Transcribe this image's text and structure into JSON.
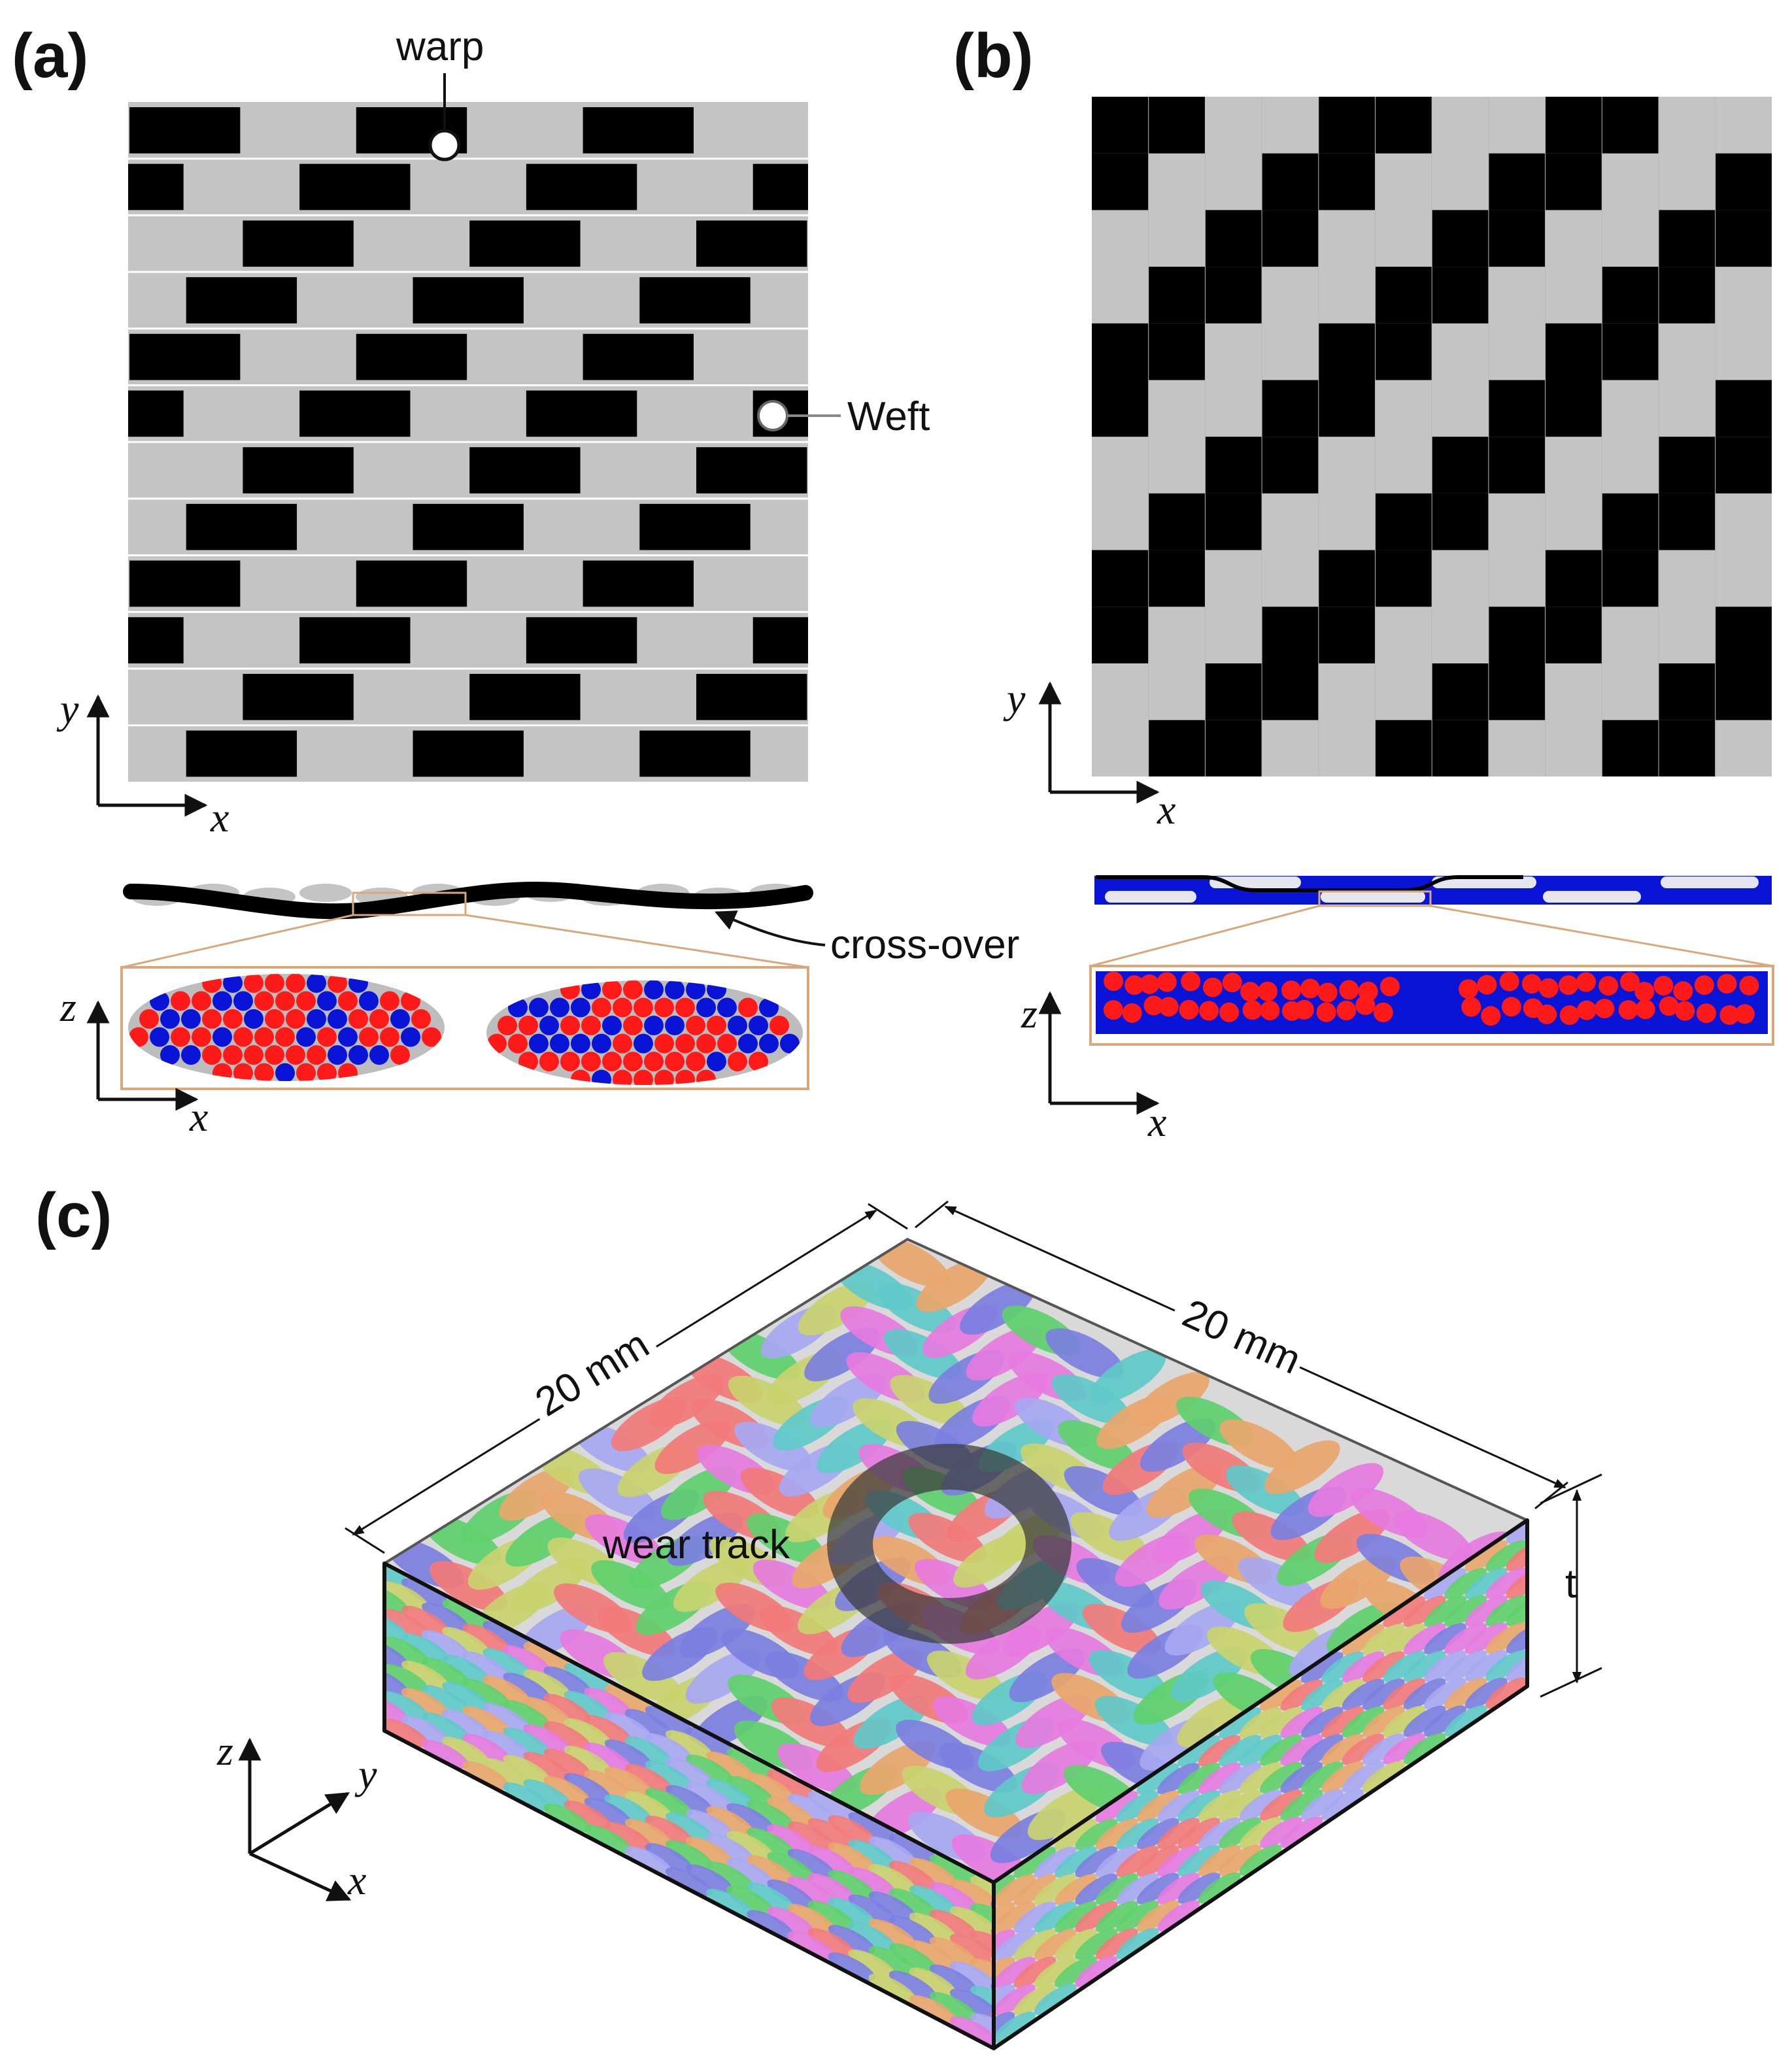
{
  "panels": {
    "a": {
      "label": "(a)",
      "annotations": {
        "warp": "warp",
        "weft": "Weft",
        "crossover": "cross-over"
      },
      "top_axes": {
        "x": "x",
        "y": "y"
      },
      "bottom_axes": {
        "x": "x",
        "z": "z"
      }
    },
    "b": {
      "label": "(b)",
      "top_axes": {
        "x": "x",
        "y": "y"
      },
      "bottom_axes": {
        "x": "x",
        "z": "z"
      }
    },
    "c": {
      "label": "(c)",
      "dimension_left": "20 mm",
      "dimension_right": "20 mm",
      "thickness": "t",
      "wear_track": "wear track",
      "axes": {
        "x": "x",
        "y": "y",
        "z": "z"
      }
    }
  },
  "colors": {
    "tow_black": "#000000",
    "tow_gray": "#c4c4c4",
    "fiber_red": "#ff1a1a",
    "fiber_blue": "#0a14d6",
    "zoom_outline": "#d9a77c",
    "tow_palette": [
      "#7b7fe0",
      "#5fd06c",
      "#f27a7a",
      "#e67ae0",
      "#c9d26e",
      "#e9a66b",
      "#5fc9c9",
      "#a7a7f2"
    ]
  }
}
